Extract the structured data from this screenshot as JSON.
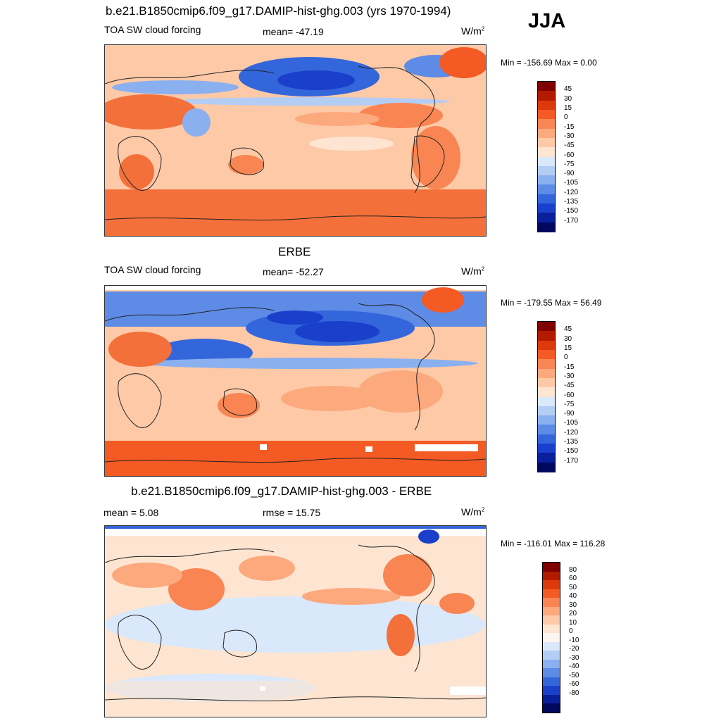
{
  "season": "JJA",
  "units": "W/m",
  "units_sup": "2",
  "panels": [
    {
      "title": "b.e21.B1850cmip6.f09_g17.DAMIP-hist-ghg.003 (yrs 1970-1994)",
      "left_label": "TOA SW cloud forcing",
      "stat": "mean= -47.19",
      "minmax": "Min = -156.69 Max =   0.00",
      "colorbar_labels": [
        "45",
        "30",
        "15",
        "0",
        "-15",
        "-30",
        "-45",
        "-60",
        "-75",
        "-90",
        "-105",
        "-120",
        "-135",
        "-150",
        "-170"
      ]
    },
    {
      "title": "ERBE",
      "left_label": "TOA SW cloud forcing",
      "stat": "mean= -52.27",
      "minmax": "Min = -179.55 Max =  56.49",
      "colorbar_labels": [
        "45",
        "30",
        "15",
        "0",
        "-15",
        "-30",
        "-45",
        "-60",
        "-75",
        "-90",
        "-105",
        "-120",
        "-135",
        "-150",
        "-170"
      ]
    },
    {
      "title": "b.e21.B1850cmip6.f09_g17.DAMIP-hist-ghg.003 - ERBE",
      "left_label": "mean =   5.08",
      "stat": "rmse =  15.75",
      "minmax": "Min = -116.01 Max = 116.28",
      "colorbar_labels": [
        "80",
        "60",
        "50",
        "40",
        "30",
        "20",
        "10",
        "0",
        "-10",
        "-20",
        "-30",
        "-40",
        "-50",
        "-60",
        "-80"
      ]
    }
  ],
  "colors": {
    "abs_scale": [
      "#7f0000",
      "#b31b00",
      "#dd3a0b",
      "#f45a23",
      "#f88552",
      "#fca97e",
      "#fdc9a7",
      "#fde5d2",
      "#d9e8fb",
      "#b3cdf5",
      "#8bb0ef",
      "#5e8be6",
      "#3466db",
      "#1a3fcb",
      "#0a1f9a",
      "#02085e"
    ],
    "diff_scale": [
      "#7f0000",
      "#b31b00",
      "#dd3a0b",
      "#f45a23",
      "#f88552",
      "#fca97e",
      "#fdc9a7",
      "#fde5d2",
      "#fdf5ef",
      "#d9e8fb",
      "#b3cdf5",
      "#8bb0ef",
      "#5e8be6",
      "#3466db",
      "#1a3fcb",
      "#0a1f9a",
      "#02085e"
    ]
  }
}
